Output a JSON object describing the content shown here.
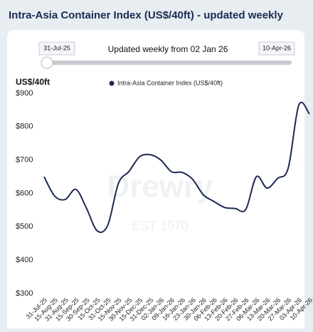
{
  "chart_data": {
    "type": "line",
    "title": "Intra-Asia Container Index (US$/40ft) - updated weekly",
    "slider": {
      "start": "31-Jul-25",
      "end": "10-Apr-26",
      "caption": "Updated weekly from 02 Jan 26"
    },
    "y_label": "US$/40ft",
    "watermark": [
      "Drewry",
      "EST 1970"
    ],
    "categories": [
      "31-Jul-25",
      "15-Aug-25",
      "31-Aug-25",
      "15-Sep-25",
      "30-Sep-25",
      "15-Oct-25",
      "31-Oct-25",
      "15-Nov-25",
      "30-Nov-25",
      "15-Dec-25",
      "31-Dec-25",
      "02-Jan-26",
      "09-Jan-26",
      "16-Jan-26",
      "23-Jan-26",
      "30-Jan-26",
      "06-Feb-26",
      "13-Feb-26",
      "20-Feb-26",
      "27-Feb-26",
      "06-Mar-26",
      "13-Mar-26",
      "20-Mar-26",
      "27-Mar-26",
      "03-Apr-26",
      "10-Apr-26"
    ],
    "series": [
      {
        "name": "Intra-Asia Container Index (US$/40ft)",
        "color": "#1b2a52",
        "values": [
          650,
          592,
          582,
          612,
          555,
          488,
          505,
          630,
          666,
          710,
          716,
          700,
          665,
          663,
          642,
          596,
          576,
          558,
          555,
          552,
          650,
          616,
          645,
          676,
          865,
          838
        ]
      }
    ],
    "ylim": [
      300,
      900
    ],
    "yticks": [
      {
        "value": 300,
        "label": "$300"
      },
      {
        "value": 400,
        "label": "$400"
      },
      {
        "value": 500,
        "label": "$500"
      },
      {
        "value": 600,
        "label": "$600"
      },
      {
        "value": 700,
        "label": "$700"
      },
      {
        "value": 800,
        "label": "$800"
      },
      {
        "value": 900,
        "label": "$900"
      }
    ],
    "grid": false
  }
}
